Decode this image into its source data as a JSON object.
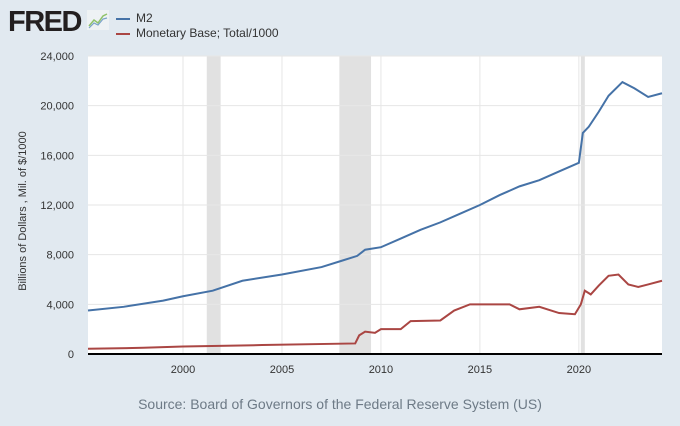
{
  "logo": "FRED",
  "source": "Source: Board of Governors of the Federal Reserve System (US)",
  "chart_data": {
    "type": "line",
    "ylabel": "Billions of Dollars , Mil. of $/1000",
    "xlim": [
      1995.2,
      2024.2
    ],
    "ylim": [
      0,
      24000
    ],
    "xticks": [
      2000,
      2005,
      2010,
      2015,
      2020
    ],
    "yticks": [
      0,
      4000,
      8000,
      12000,
      16000,
      20000,
      24000
    ],
    "ytick_labels": [
      "0",
      "4,000",
      "8,000",
      "12,000",
      "16,000",
      "20,000",
      "24,000"
    ],
    "grid": true,
    "legend": "top-left",
    "recessions": [
      [
        2001.2,
        2001.9
      ],
      [
        2007.9,
        2009.5
      ],
      [
        2020.1,
        2020.3
      ]
    ],
    "series": [
      {
        "name": "M2",
        "color": "#4572a7",
        "x": [
          1995.2,
          1997,
          1999,
          2000,
          2001.5,
          2003,
          2005,
          2007,
          2008,
          2008.8,
          2009.2,
          2010,
          2011,
          2012,
          2013,
          2014,
          2015,
          2016,
          2017,
          2018,
          2019,
          2020.0,
          2020.2,
          2020.5,
          2021,
          2021.5,
          2022.2,
          2022.8,
          2023.5,
          2024.2
        ],
        "y": [
          3500,
          3800,
          4300,
          4650,
          5100,
          5900,
          6400,
          7000,
          7500,
          7900,
          8400,
          8600,
          9300,
          10000,
          10600,
          11300,
          12000,
          12800,
          13500,
          14000,
          14700,
          15400,
          17800,
          18300,
          19500,
          20800,
          21900,
          21400,
          20700,
          21000
        ]
      },
      {
        "name": "Monetary Base; Total/1000",
        "color": "#aa4643",
        "x": [
          1995.2,
          1998,
          2000,
          2004,
          2008.7,
          2008.9,
          2009.2,
          2009.7,
          2010,
          2011,
          2011.5,
          2013,
          2013.7,
          2014.5,
          2015,
          2016.5,
          2017,
          2018,
          2019,
          2019.8,
          2020.1,
          2020.3,
          2020.6,
          2021,
          2021.5,
          2022,
          2022.5,
          2023,
          2023.5,
          2024.2
        ],
        "y": [
          420,
          500,
          600,
          720,
          850,
          1500,
          1800,
          1700,
          2000,
          2000,
          2650,
          2700,
          3500,
          4000,
          4000,
          4000,
          3600,
          3800,
          3300,
          3200,
          4000,
          5100,
          4800,
          5500,
          6300,
          6400,
          5600,
          5400,
          5600,
          5900
        ]
      }
    ]
  }
}
